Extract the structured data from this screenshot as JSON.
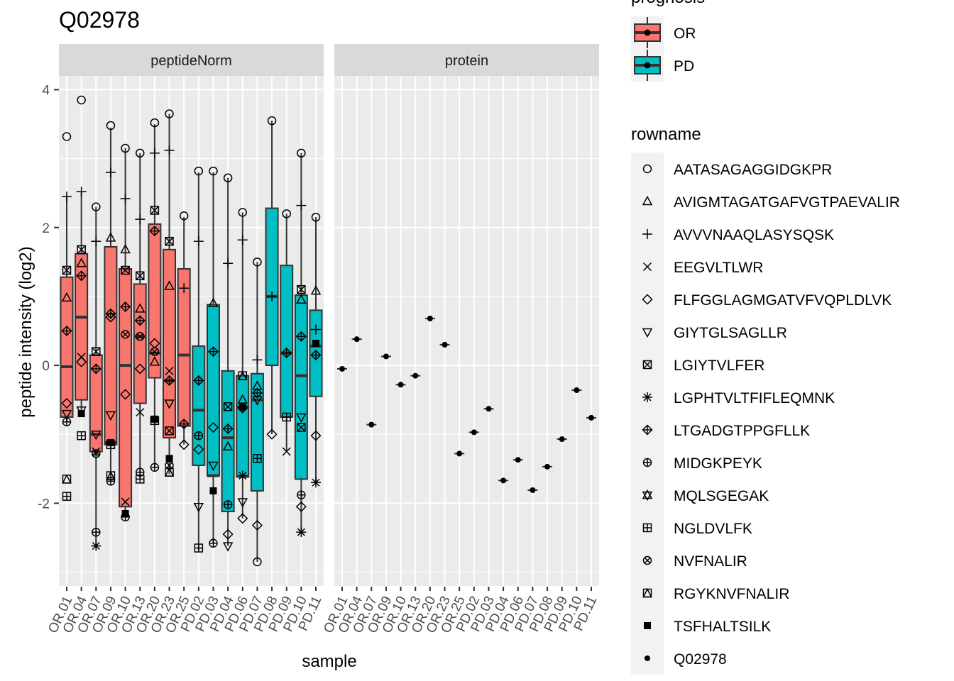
{
  "chart_data": {
    "type": "boxplot",
    "title": "Q02978",
    "xlabel": "sample",
    "ylabel": "peptide intensity (log2)",
    "ylim": [
      -3.2,
      4.2
    ],
    "yticks": [
      -2,
      0,
      2,
      4
    ],
    "facets": [
      "peptideNorm",
      "protein"
    ],
    "samples": [
      "OR.01",
      "OR.04",
      "OR.07",
      "OR.09",
      "OR.10",
      "OR.13",
      "OR.20",
      "OR.23",
      "OR.25",
      "PD.02",
      "PD.03",
      "PD.04",
      "PD.06",
      "PD.07",
      "PD.08",
      "PD.09",
      "PD.10",
      "PD.11"
    ],
    "prognosis": [
      "OR",
      "OR",
      "OR",
      "OR",
      "OR",
      "OR",
      "OR",
      "OR",
      "OR",
      "PD",
      "PD",
      "PD",
      "PD",
      "PD",
      "PD",
      "PD",
      "PD",
      "PD"
    ],
    "colors": {
      "OR": "#F8766D",
      "PD": "#00BFC4"
    },
    "legend_prognosis": {
      "title": "prognosis",
      "items": [
        "OR",
        "PD"
      ]
    },
    "legend_rowname": {
      "title": "rowname",
      "items": [
        {
          "label": "AATASAGAGGIDGKPR",
          "shape": "circle"
        },
        {
          "label": "AVIGMTAGATGAFVGTPAEVALIR",
          "shape": "triangle"
        },
        {
          "label": "AVVVNAAQLASYSQSK",
          "shape": "plus"
        },
        {
          "label": "EEGVLTLWR",
          "shape": "cross"
        },
        {
          "label": "FLFGGLAGMGATVFVQPLDLVK",
          "shape": "diamond"
        },
        {
          "label": "GIYTGLSAGLLR",
          "shape": "triangle-down"
        },
        {
          "label": "LGIYTVLFER",
          "shape": "square-cross"
        },
        {
          "label": "LGPHTVLTFIFLEQMNK",
          "shape": "asterisk"
        },
        {
          "label": "LTGADGTPPGFLLK",
          "shape": "diamond-plus"
        },
        {
          "label": "MIDGKPEYK",
          "shape": "circle-plus"
        },
        {
          "label": "MQLSGEGAK",
          "shape": "star-of-david"
        },
        {
          "label": "NGLDVLFK",
          "shape": "square-plus"
        },
        {
          "label": "NVFNALIR",
          "shape": "circle-cross"
        },
        {
          "label": "RGYKNVFNALIR",
          "shape": "square-triangle"
        },
        {
          "label": "TSFHALTSILK",
          "shape": "filled-square"
        },
        {
          "label": "Q02978",
          "shape": "filled-circle"
        }
      ]
    },
    "boxes": [
      {
        "sample": "OR.01",
        "q1": -0.75,
        "median": -0.02,
        "q3": 1.28,
        "lower": -0.82,
        "upper": 2.45
      },
      {
        "sample": "OR.04",
        "q1": -0.5,
        "median": 0.7,
        "q3": 1.62,
        "lower": -0.7,
        "upper": 2.52
      },
      {
        "sample": "OR.07",
        "q1": -1.25,
        "median": -1.0,
        "q3": 0.15,
        "lower": -2.62,
        "upper": 2.3
      },
      {
        "sample": "OR.09",
        "q1": -1.15,
        "median": -1.12,
        "q3": 1.72,
        "lower": -1.68,
        "upper": 3.45
      },
      {
        "sample": "OR.10",
        "q1": -2.05,
        "median": 0.0,
        "q3": 1.4,
        "lower": -2.2,
        "upper": 3.15
      },
      {
        "sample": "OR.13",
        "q1": -0.55,
        "median": 0.42,
        "q3": 1.18,
        "lower": -1.65,
        "upper": 3.08
      },
      {
        "sample": "OR.20",
        "q1": -0.18,
        "median": 0.18,
        "q3": 2.05,
        "lower": -1.48,
        "upper": 3.5
      },
      {
        "sample": "OR.23",
        "q1": -1.05,
        "median": -0.22,
        "q3": 1.68,
        "lower": -1.58,
        "upper": 3.65
      },
      {
        "sample": "OR.25",
        "q1": -0.88,
        "median": 0.15,
        "q3": 1.4,
        "lower": -1.15,
        "upper": 2.15
      },
      {
        "sample": "PD.02",
        "q1": -1.45,
        "median": -0.65,
        "q3": 0.28,
        "lower": -2.68,
        "upper": 2.8
      },
      {
        "sample": "PD.03",
        "q1": -1.6,
        "median": -1.6,
        "q3": 0.88,
        "lower": -2.58,
        "upper": 2.8
      },
      {
        "sample": "PD.04",
        "q1": -2.12,
        "median": -1.05,
        "q3": -0.08,
        "lower": -2.62,
        "upper": 2.72
      },
      {
        "sample": "PD.06",
        "q1": -1.62,
        "median": -0.6,
        "q3": -0.15,
        "lower": -2.22,
        "upper": 2.22
      },
      {
        "sample": "PD.07",
        "q1": -1.82,
        "median": -0.5,
        "q3": -0.12,
        "lower": -2.85,
        "upper": 1.5
      },
      {
        "sample": "PD.08",
        "q1": 0.0,
        "median": 1.0,
        "q3": 2.28,
        "lower": -1.0,
        "upper": 3.55
      },
      {
        "sample": "PD.09",
        "q1": -0.75,
        "median": 0.18,
        "q3": 1.45,
        "lower": -1.25,
        "upper": 2.2
      },
      {
        "sample": "PD.10",
        "q1": -1.65,
        "median": -0.15,
        "q3": 1.02,
        "lower": -2.42,
        "upper": 3.08
      },
      {
        "sample": "PD.11",
        "q1": -0.45,
        "median": 0.28,
        "q3": 0.8,
        "lower": -1.7,
        "upper": 2.15
      }
    ],
    "points": [
      {
        "sample": "OR.01",
        "shape": "circle",
        "y": 3.32
      },
      {
        "sample": "OR.01",
        "shape": "plus",
        "y": 2.45
      },
      {
        "sample": "OR.01",
        "shape": "square-cross",
        "y": 1.38
      },
      {
        "sample": "OR.01",
        "shape": "triangle",
        "y": 0.98
      },
      {
        "sample": "OR.01",
        "shape": "diamond-plus",
        "y": 0.5
      },
      {
        "sample": "OR.01",
        "shape": "diamond",
        "y": -0.55
      },
      {
        "sample": "OR.01",
        "shape": "triangle-down",
        "y": -0.7
      },
      {
        "sample": "OR.01",
        "shape": "circle-plus",
        "y": -0.82
      },
      {
        "sample": "OR.01",
        "shape": "square-triangle",
        "y": -1.65
      },
      {
        "sample": "OR.01",
        "shape": "square-plus",
        "y": -1.9
      },
      {
        "sample": "OR.04",
        "shape": "circle",
        "y": 3.85
      },
      {
        "sample": "OR.04",
        "shape": "plus",
        "y": 2.52
      },
      {
        "sample": "OR.04",
        "shape": "square-cross",
        "y": 1.68
      },
      {
        "sample": "OR.04",
        "shape": "triangle",
        "y": 1.48
      },
      {
        "sample": "OR.04",
        "shape": "diamond-plus",
        "y": 1.3
      },
      {
        "sample": "OR.04",
        "shape": "cross",
        "y": 0.12
      },
      {
        "sample": "OR.04",
        "shape": "diamond",
        "y": 0.05
      },
      {
        "sample": "OR.04",
        "shape": "triangle-down",
        "y": -0.65
      },
      {
        "sample": "OR.04",
        "shape": "filled-square",
        "y": -0.7
      },
      {
        "sample": "OR.04",
        "shape": "square-plus",
        "y": -1.02
      },
      {
        "sample": "OR.07",
        "shape": "circle",
        "y": 2.3
      },
      {
        "sample": "OR.07",
        "shape": "plus",
        "y": 1.8
      },
      {
        "sample": "OR.07",
        "shape": "square-cross",
        "y": 0.2
      },
      {
        "sample": "OR.07",
        "shape": "diamond-plus",
        "y": -0.05
      },
      {
        "sample": "OR.07",
        "shape": "triangle-down",
        "y": -1.0
      },
      {
        "sample": "OR.07",
        "shape": "cross",
        "y": -1.25
      },
      {
        "sample": "OR.07",
        "shape": "circle-cross",
        "y": -1.28
      },
      {
        "sample": "OR.07",
        "shape": "circle-plus",
        "y": -2.42
      },
      {
        "sample": "OR.07",
        "shape": "asterisk",
        "y": -2.62
      },
      {
        "sample": "OR.09",
        "shape": "circle",
        "y": 3.48
      },
      {
        "sample": "OR.09",
        "shape": "plus",
        "y": 2.8
      },
      {
        "sample": "OR.09",
        "shape": "triangle",
        "y": 1.85
      },
      {
        "sample": "OR.09",
        "shape": "diamond-plus",
        "y": 0.75
      },
      {
        "sample": "OR.09",
        "shape": "diamond",
        "y": 0.7
      },
      {
        "sample": "OR.09",
        "shape": "triangle-down",
        "y": -0.72
      },
      {
        "sample": "OR.09",
        "shape": "filled-square",
        "y": -1.12
      },
      {
        "sample": "OR.09",
        "shape": "square-plus",
        "y": -1.15
      },
      {
        "sample": "OR.09",
        "shape": "square-triangle",
        "y": -1.6
      },
      {
        "sample": "OR.09",
        "shape": "circle-plus",
        "y": -1.68
      },
      {
        "sample": "OR.10",
        "shape": "circle",
        "y": 3.15
      },
      {
        "sample": "OR.10",
        "shape": "plus",
        "y": 2.42
      },
      {
        "sample": "OR.10",
        "shape": "triangle",
        "y": 1.68
      },
      {
        "sample": "OR.10",
        "shape": "square-cross",
        "y": 1.38
      },
      {
        "sample": "OR.10",
        "shape": "diamond-plus",
        "y": 0.85
      },
      {
        "sample": "OR.10",
        "shape": "circle-cross",
        "y": 0.45
      },
      {
        "sample": "OR.10",
        "shape": "diamond",
        "y": -0.42
      },
      {
        "sample": "OR.10",
        "shape": "cross",
        "y": -1.98
      },
      {
        "sample": "OR.10",
        "shape": "filled-square",
        "y": -2.15
      },
      {
        "sample": "OR.10",
        "shape": "circle-plus",
        "y": -2.2
      },
      {
        "sample": "OR.13",
        "shape": "circle",
        "y": 3.08
      },
      {
        "sample": "OR.13",
        "shape": "plus",
        "y": 2.12
      },
      {
        "sample": "OR.13",
        "shape": "square-cross",
        "y": 1.3
      },
      {
        "sample": "OR.13",
        "shape": "triangle",
        "y": 0.82
      },
      {
        "sample": "OR.13",
        "shape": "diamond-plus",
        "y": 0.65
      },
      {
        "sample": "OR.13",
        "shape": "circle-cross",
        "y": 0.42
      },
      {
        "sample": "OR.13",
        "shape": "diamond",
        "y": -0.05
      },
      {
        "sample": "OR.13",
        "shape": "cross",
        "y": -0.68
      },
      {
        "sample": "OR.13",
        "shape": "circle-plus",
        "y": -1.55
      },
      {
        "sample": "OR.13",
        "shape": "square-plus",
        "y": -1.65
      },
      {
        "sample": "OR.20",
        "shape": "circle",
        "y": 3.52
      },
      {
        "sample": "OR.20",
        "shape": "plus",
        "y": 3.08
      },
      {
        "sample": "OR.20",
        "shape": "square-cross",
        "y": 2.25
      },
      {
        "sample": "OR.20",
        "shape": "diamond-plus",
        "y": 1.95
      },
      {
        "sample": "OR.20",
        "shape": "diamond",
        "y": 0.32
      },
      {
        "sample": "OR.20",
        "shape": "circle-cross",
        "y": 0.2
      },
      {
        "sample": "OR.20",
        "shape": "triangle",
        "y": 0.05
      },
      {
        "sample": "OR.20",
        "shape": "filled-square",
        "y": -0.78
      },
      {
        "sample": "OR.20",
        "shape": "square-plus",
        "y": -0.8
      },
      {
        "sample": "OR.20",
        "shape": "circle-plus",
        "y": -1.48
      },
      {
        "sample": "OR.23",
        "shape": "circle",
        "y": 3.65
      },
      {
        "sample": "OR.23",
        "shape": "plus",
        "y": 3.12
      },
      {
        "sample": "OR.23",
        "shape": "square-cross",
        "y": 1.8
      },
      {
        "sample": "OR.23",
        "shape": "triangle",
        "y": 1.15
      },
      {
        "sample": "OR.23",
        "shape": "cross",
        "y": -0.08
      },
      {
        "sample": "OR.23",
        "shape": "diamond-plus",
        "y": -0.22
      },
      {
        "sample": "OR.23",
        "shape": "triangle-down",
        "y": -0.55
      },
      {
        "sample": "OR.23",
        "shape": "square-cross",
        "y": -0.95
      },
      {
        "sample": "OR.23",
        "shape": "filled-square",
        "y": -1.35
      },
      {
        "sample": "OR.23",
        "shape": "circle-cross",
        "y": -1.45
      },
      {
        "sample": "OR.23",
        "shape": "square-triangle",
        "y": -1.55
      },
      {
        "sample": "OR.25",
        "shape": "circle",
        "y": 2.17
      },
      {
        "sample": "OR.25",
        "shape": "plus",
        "y": 1.12
      },
      {
        "sample": "OR.25",
        "shape": "diamond-plus",
        "y": -0.85
      },
      {
        "sample": "OR.25",
        "shape": "diamond",
        "y": -1.15
      },
      {
        "sample": "PD.02",
        "shape": "circle",
        "y": 2.82
      },
      {
        "sample": "PD.02",
        "shape": "plus",
        "y": 1.8
      },
      {
        "sample": "PD.02",
        "shape": "diamond-plus",
        "y": -0.22
      },
      {
        "sample": "PD.02",
        "shape": "circle-plus",
        "y": -1.02
      },
      {
        "sample": "PD.02",
        "shape": "diamond",
        "y": -1.22
      },
      {
        "sample": "PD.02",
        "shape": "triangle-down",
        "y": -2.05
      },
      {
        "sample": "PD.02",
        "shape": "square-plus",
        "y": -2.65
      },
      {
        "sample": "PD.03",
        "shape": "circle",
        "y": 2.82
      },
      {
        "sample": "PD.03",
        "shape": "triangle",
        "y": 0.9
      },
      {
        "sample": "PD.03",
        "shape": "diamond-plus",
        "y": 0.2
      },
      {
        "sample": "PD.03",
        "shape": "diamond",
        "y": -0.9
      },
      {
        "sample": "PD.03",
        "shape": "triangle-down",
        "y": -1.45
      },
      {
        "sample": "PD.03",
        "shape": "filled-square",
        "y": -1.82
      },
      {
        "sample": "PD.03",
        "shape": "circle-plus",
        "y": -2.58
      },
      {
        "sample": "PD.04",
        "shape": "circle",
        "y": 2.72
      },
      {
        "sample": "PD.04",
        "shape": "plus",
        "y": 1.48
      },
      {
        "sample": "PD.04",
        "shape": "square-cross",
        "y": -0.6
      },
      {
        "sample": "PD.04",
        "shape": "diamond-plus",
        "y": -0.92
      },
      {
        "sample": "PD.04",
        "shape": "triangle",
        "y": -1.18
      },
      {
        "sample": "PD.04",
        "shape": "circle-plus",
        "y": -2.02
      },
      {
        "sample": "PD.04",
        "shape": "diamond",
        "y": -2.45
      },
      {
        "sample": "PD.04",
        "shape": "triangle-down",
        "y": -2.62
      },
      {
        "sample": "PD.06",
        "shape": "circle",
        "y": 2.22
      },
      {
        "sample": "PD.06",
        "shape": "plus",
        "y": 1.82
      },
      {
        "sample": "PD.06",
        "shape": "square-triangle",
        "y": -0.15
      },
      {
        "sample": "PD.06",
        "shape": "triangle",
        "y": -0.5
      },
      {
        "sample": "PD.06",
        "shape": "filled-square",
        "y": -0.6
      },
      {
        "sample": "PD.06",
        "shape": "diamond-plus",
        "y": -0.62
      },
      {
        "sample": "PD.06",
        "shape": "asterisk",
        "y": -1.6
      },
      {
        "sample": "PD.06",
        "shape": "triangle-down",
        "y": -1.98
      },
      {
        "sample": "PD.06",
        "shape": "diamond",
        "y": -2.22
      },
      {
        "sample": "PD.07",
        "shape": "circle",
        "y": 1.5
      },
      {
        "sample": "PD.07",
        "shape": "plus",
        "y": 0.08
      },
      {
        "sample": "PD.07",
        "shape": "triangle",
        "y": -0.3
      },
      {
        "sample": "PD.07",
        "shape": "diamond-plus",
        "y": -0.4
      },
      {
        "sample": "PD.07",
        "shape": "triangle-down",
        "y": -0.5
      },
      {
        "sample": "PD.07",
        "shape": "square-plus",
        "y": -1.35
      },
      {
        "sample": "PD.07",
        "shape": "diamond",
        "y": -2.32
      },
      {
        "sample": "PD.07",
        "shape": "circle",
        "y": -2.85
      },
      {
        "sample": "PD.08",
        "shape": "circle",
        "y": 3.55
      },
      {
        "sample": "PD.08",
        "shape": "plus",
        "y": 1.0
      },
      {
        "sample": "PD.08",
        "shape": "diamond",
        "y": -1.0
      },
      {
        "sample": "PD.09",
        "shape": "circle",
        "y": 2.2
      },
      {
        "sample": "PD.09",
        "shape": "diamond-plus",
        "y": 0.18
      },
      {
        "sample": "PD.09",
        "shape": "square-plus",
        "y": -0.75
      },
      {
        "sample": "PD.09",
        "shape": "cross",
        "y": -1.25
      },
      {
        "sample": "PD.10",
        "shape": "circle",
        "y": 3.08
      },
      {
        "sample": "PD.10",
        "shape": "plus",
        "y": 2.32
      },
      {
        "sample": "PD.10",
        "shape": "square-cross",
        "y": 1.1
      },
      {
        "sample": "PD.10",
        "shape": "triangle",
        "y": 0.95
      },
      {
        "sample": "PD.10",
        "shape": "diamond-plus",
        "y": 0.42
      },
      {
        "sample": "PD.10",
        "shape": "triangle-down",
        "y": -0.75
      },
      {
        "sample": "PD.10",
        "shape": "square-cross",
        "y": -0.9
      },
      {
        "sample": "PD.10",
        "shape": "circle-plus",
        "y": -1.88
      },
      {
        "sample": "PD.10",
        "shape": "diamond",
        "y": -2.05
      },
      {
        "sample": "PD.10",
        "shape": "asterisk",
        "y": -2.42
      },
      {
        "sample": "PD.11",
        "shape": "circle",
        "y": 2.15
      },
      {
        "sample": "PD.11",
        "shape": "triangle",
        "y": 1.08
      },
      {
        "sample": "PD.11",
        "shape": "plus",
        "y": 0.52
      },
      {
        "sample": "PD.11",
        "shape": "filled-square",
        "y": 0.32
      },
      {
        "sample": "PD.11",
        "shape": "diamond-plus",
        "y": 0.15
      },
      {
        "sample": "PD.11",
        "shape": "diamond",
        "y": -1.02
      },
      {
        "sample": "PD.11",
        "shape": "asterisk",
        "y": -1.7
      }
    ],
    "protein_values": [
      -0.05,
      0.38,
      -0.86,
      0.13,
      -0.28,
      -0.15,
      0.68,
      0.3,
      -1.28,
      -0.97,
      -0.63,
      -1.67,
      -1.37,
      -1.81,
      -1.47,
      -1.07,
      -0.36,
      -0.76
    ]
  }
}
